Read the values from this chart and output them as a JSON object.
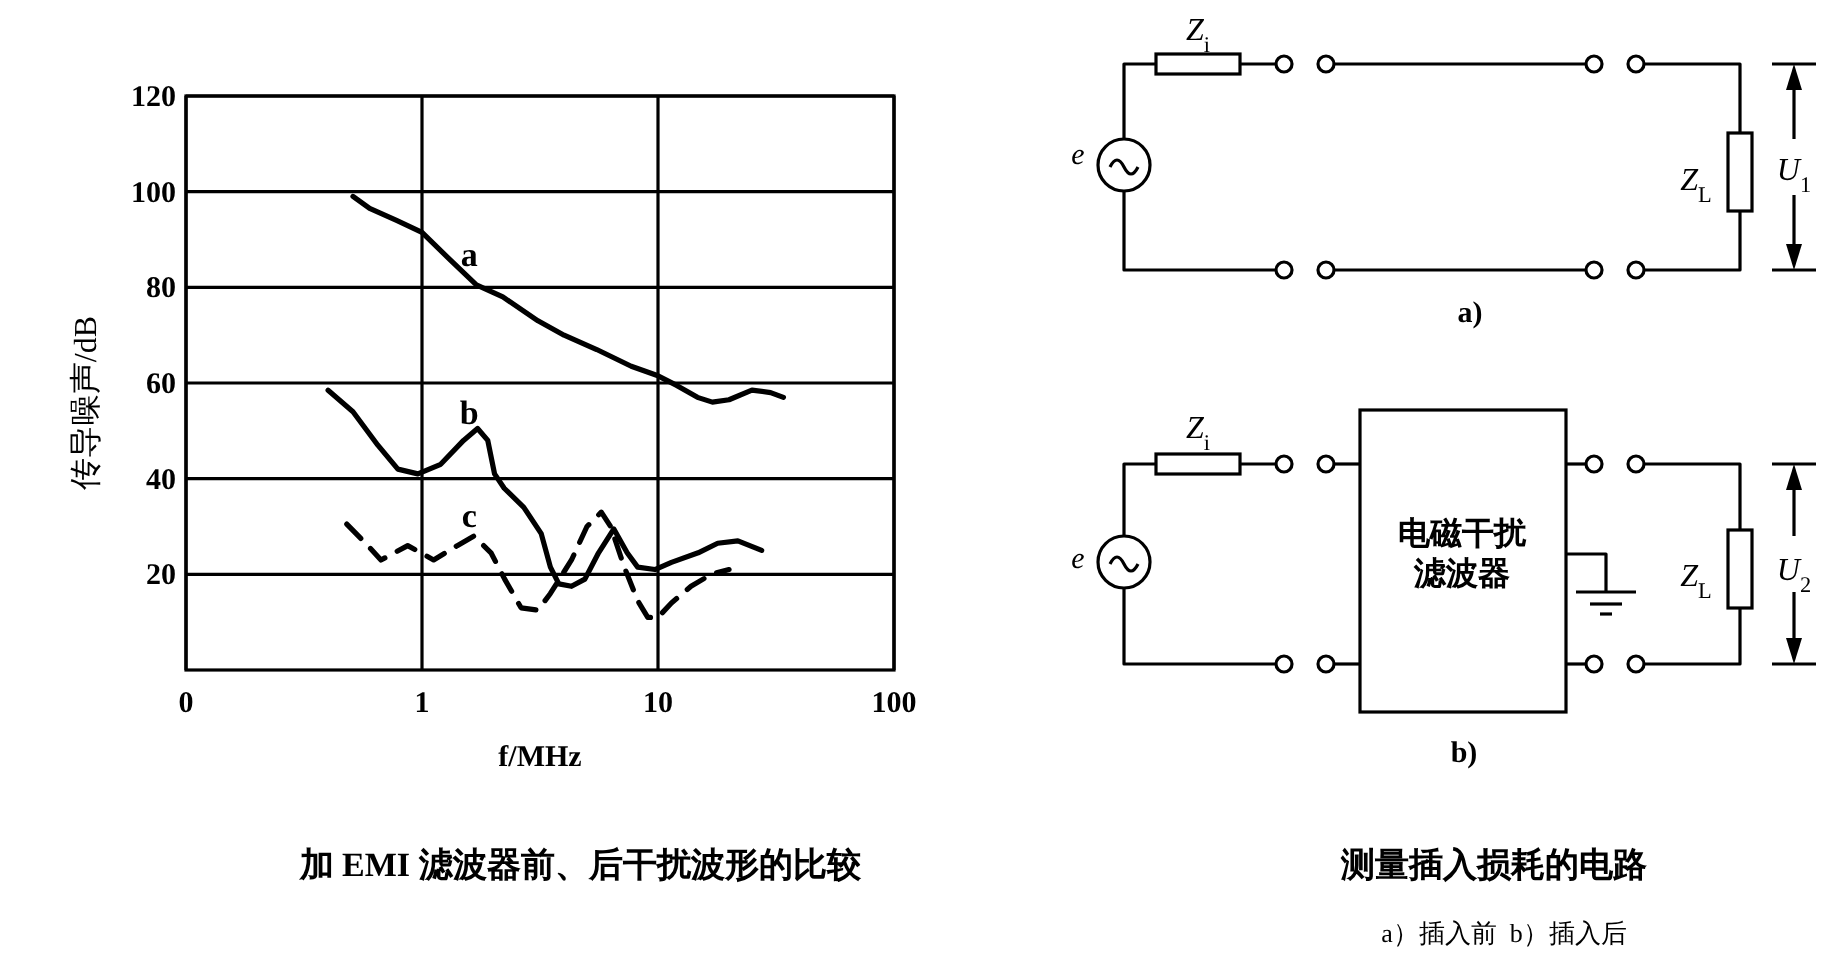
{
  "chart_data": [
    {
      "type": "line",
      "title": "加 EMI 滤波器前、后干扰波形的比较",
      "xlabel": "f/MHz",
      "ylabel": "传导噪声/dB",
      "log": "x",
      "xlim": [
        0.1,
        100
      ],
      "xticks": [
        {
          "value": 0.1,
          "label": "0"
        },
        1,
        10,
        100
      ],
      "ylim": [
        0,
        120
      ],
      "yticks": [
        20,
        40,
        60,
        80,
        100,
        120
      ],
      "grid": true,
      "series": [
        {
          "name": "a",
          "color": "#000000",
          "line_style": "solid",
          "x": [
            0.51,
            0.6,
            0.78,
            1.0,
            1.3,
            1.7,
            2.2,
            3.1,
            4.0,
            5.5,
            7.7,
            10,
            12,
            14.7,
            17,
            20,
            25,
            30,
            34
          ],
          "values": [
            99,
            96.5,
            94,
            91.5,
            86,
            80.5,
            78,
            73,
            70,
            67,
            63.5,
            61.5,
            59.5,
            57,
            56,
            56.5,
            58.5,
            58,
            57
          ]
        },
        {
          "name": "b",
          "color": "#000000",
          "line_style": "solid",
          "x": [
            0.4,
            0.51,
            0.65,
            0.79,
            0.96,
            1.2,
            1.5,
            1.72,
            1.9,
            2.03,
            2.23,
            2.7,
            3.2,
            3.5,
            3.8,
            4.3,
            4.9,
            5.6,
            6.5,
            7.4,
            8.2,
            9.7,
            11.4,
            14.8,
            17.9,
            21.8,
            27.5
          ],
          "values": [
            58.5,
            54,
            47,
            42,
            41,
            43,
            48,
            50.5,
            48,
            41,
            38,
            34,
            28.5,
            21.5,
            18,
            17.5,
            19,
            24.5,
            29.5,
            24.5,
            21.5,
            21,
            22.5,
            24.5,
            26.5,
            27,
            25
          ]
        },
        {
          "name": "c",
          "color": "#000000",
          "line_style": "dashed",
          "x": [
            0.48,
            0.59,
            0.67,
            0.87,
            1.12,
            1.41,
            1.66,
            1.96,
            2.24,
            2.63,
            3.1,
            3.5,
            4.3,
            5.0,
            5.75,
            6.3,
            7.2,
            8.2,
            9.05,
            10,
            11.4,
            13.8,
            16.8,
            20
          ],
          "values": [
            30.5,
            26,
            23,
            26,
            23,
            26,
            28,
            24.5,
            19,
            13,
            12.5,
            16,
            23,
            30,
            33,
            30,
            21.5,
            14.5,
            11,
            11,
            14,
            17.5,
            20,
            21
          ]
        }
      ]
    },
    {
      "type": "other",
      "title": "测量插入损耗的电路",
      "subtitle": "a）插入前  b）插入后",
      "annotations": [
        "Z$_{i}$",
        "Z$_{L}$",
        "U$_{1}$",
        "e",
        "a)",
        "Z$_{i}$",
        "电磁干扰滤波器",
        "Z$_{L}$",
        "U$_{2}$",
        "e",
        "b)"
      ]
    }
  ]
}
